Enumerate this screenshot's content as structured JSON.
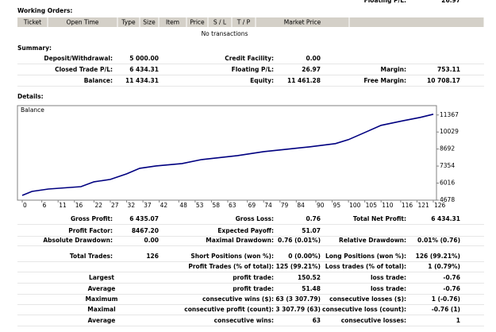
{
  "top_cut": {
    "label": "Floating P/L:",
    "value": "26.97"
  },
  "working_orders": {
    "title": "Working Orders:",
    "columns": [
      "Ticket",
      "Open Time",
      "Type",
      "Size",
      "Item",
      "Price",
      "S / L",
      "T / P",
      "Market Price"
    ],
    "empty": "No transactions"
  },
  "summary": {
    "title": "Summary:",
    "rows": [
      [
        {
          "label": "Deposit/Withdrawal:",
          "value": "5 000.00"
        },
        {
          "label": "Credit Facility:",
          "value": "0.00"
        },
        null
      ],
      [
        {
          "label": "Closed Trade P/L:",
          "value": "6 434.31"
        },
        {
          "label": "Floating P/L:",
          "value": "26.97"
        },
        {
          "label": "Margin:",
          "value": "753.11"
        }
      ],
      [
        {
          "label": "Balance:",
          "value": "11 434.31"
        },
        {
          "label": "Equity:",
          "value": "11 461.28"
        },
        {
          "label": "Free Margin:",
          "value": "10 708.17"
        }
      ]
    ]
  },
  "details": {
    "title": "Details:",
    "chart": {
      "type": "line",
      "label": "Balance",
      "color": "#000080",
      "x": [
        0,
        3,
        8,
        18,
        22,
        27,
        32,
        36,
        41,
        49,
        55,
        66,
        74,
        81,
        88,
        96,
        100,
        105,
        110,
        117,
        122,
        126
      ],
      "values": [
        5053,
        5366,
        5553,
        5740,
        6116,
        6303,
        6740,
        7178,
        7366,
        7553,
        7866,
        8178,
        8490,
        8678,
        8866,
        9116,
        9428,
        9990,
        10553,
        10928,
        11178,
        11428
      ],
      "xlim": [
        0,
        126
      ],
      "xticks": [
        0,
        6,
        11,
        16,
        22,
        27,
        32,
        37,
        42,
        48,
        53,
        58,
        63,
        69,
        74,
        79,
        84,
        90,
        95,
        100,
        105,
        110,
        116,
        121,
        126
      ],
      "ylim": [
        4678,
        12100
      ],
      "yticks": [
        4678,
        6016,
        7354,
        8692,
        10029,
        11367
      ]
    },
    "rows": [
      [
        {
          "label": "Gross Profit:",
          "value": "6 435.07"
        },
        {
          "label": "Gross Loss:",
          "value": "0.76"
        },
        {
          "label": "Total Net Profit:",
          "value": "6 434.31"
        }
      ],
      [
        {
          "label": "Profit Factor:",
          "value": "8467.20"
        },
        {
          "label": "Expected Payoff:",
          "value": "51.07"
        },
        null
      ],
      [
        {
          "label": "Absolute Drawdown:",
          "value": "0.00"
        },
        {
          "label": "Maximal Drawdown:",
          "value": "0.76 (0.01%)"
        },
        {
          "label": "Relative Drawdown:",
          "value": "0.01% (0.76)"
        }
      ],
      [
        {
          "label": "Total Trades:",
          "value": "126"
        },
        {
          "label": "Short Positions (won %):",
          "value": "0 (0.00%)"
        },
        {
          "label": "Long Positions (won %):",
          "value": "126 (99.21%)"
        }
      ],
      [
        null,
        {
          "label": "Profit Trades (% of total):",
          "value": "125 (99.21%)"
        },
        {
          "label": "Loss trades (% of total):",
          "value": "1 (0.79%)"
        }
      ],
      [
        {
          "group": "Largest"
        },
        {
          "label": "profit trade:",
          "value": "150.52"
        },
        {
          "label": "loss trade:",
          "value": "-0.76"
        }
      ],
      [
        {
          "group": "Average"
        },
        {
          "label": "profit trade:",
          "value": "51.48"
        },
        {
          "label": "loss trade:",
          "value": "-0.76"
        }
      ],
      [
        {
          "group": "Maximum"
        },
        {
          "label": "consecutive wins ($):",
          "value": "63 (3 307.79)"
        },
        {
          "label": "consecutive losses ($):",
          "value": "1 (-0.76)"
        }
      ],
      [
        {
          "group": "Maximal"
        },
        {
          "label": "consecutive profit (count):",
          "value": "3 307.79 (63)"
        },
        {
          "label": "consecutive loss (count):",
          "value": "-0.76 (1)"
        }
      ],
      [
        {
          "group": "Average"
        },
        {
          "label": "consecutive wins:",
          "value": "63"
        },
        {
          "label": "consecutive losses:",
          "value": "1"
        }
      ]
    ]
  }
}
